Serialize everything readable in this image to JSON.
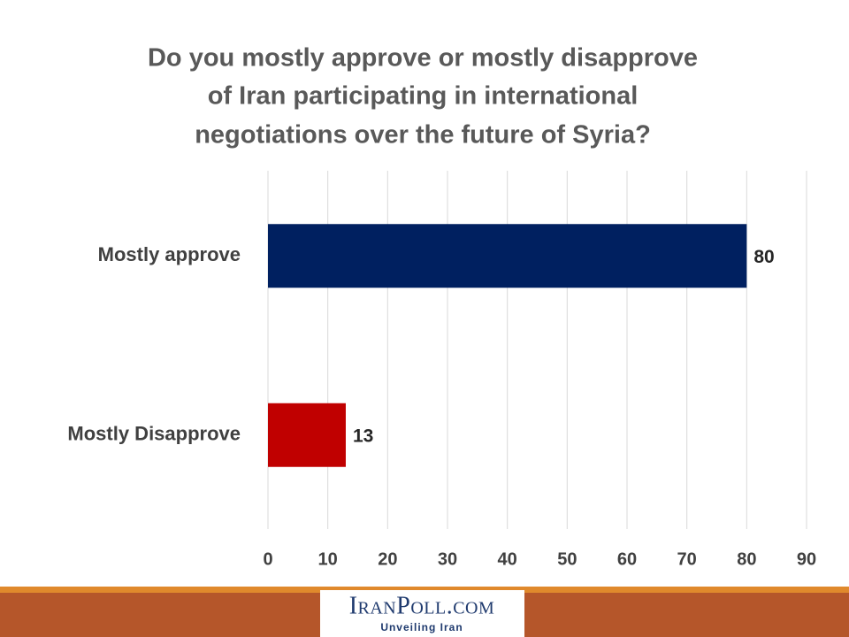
{
  "chart_data": {
    "type": "hbar",
    "title": [
      "Do you mostly approve or mostly disapprove",
      "of Iran participating in international",
      "negotiations over the future of Syria?"
    ],
    "categories": [
      "Mostly approve",
      "Mostly Disapprove"
    ],
    "values": [
      80,
      13
    ],
    "colors": [
      "#002060",
      "#c00000"
    ],
    "xlim": [
      0,
      90
    ],
    "xticks": [
      0,
      10,
      20,
      30,
      40,
      50,
      60,
      70,
      80,
      90
    ],
    "grid": true
  },
  "footer": {
    "logo": "IranPoll.com",
    "tagline": "Unveiling Iran"
  }
}
